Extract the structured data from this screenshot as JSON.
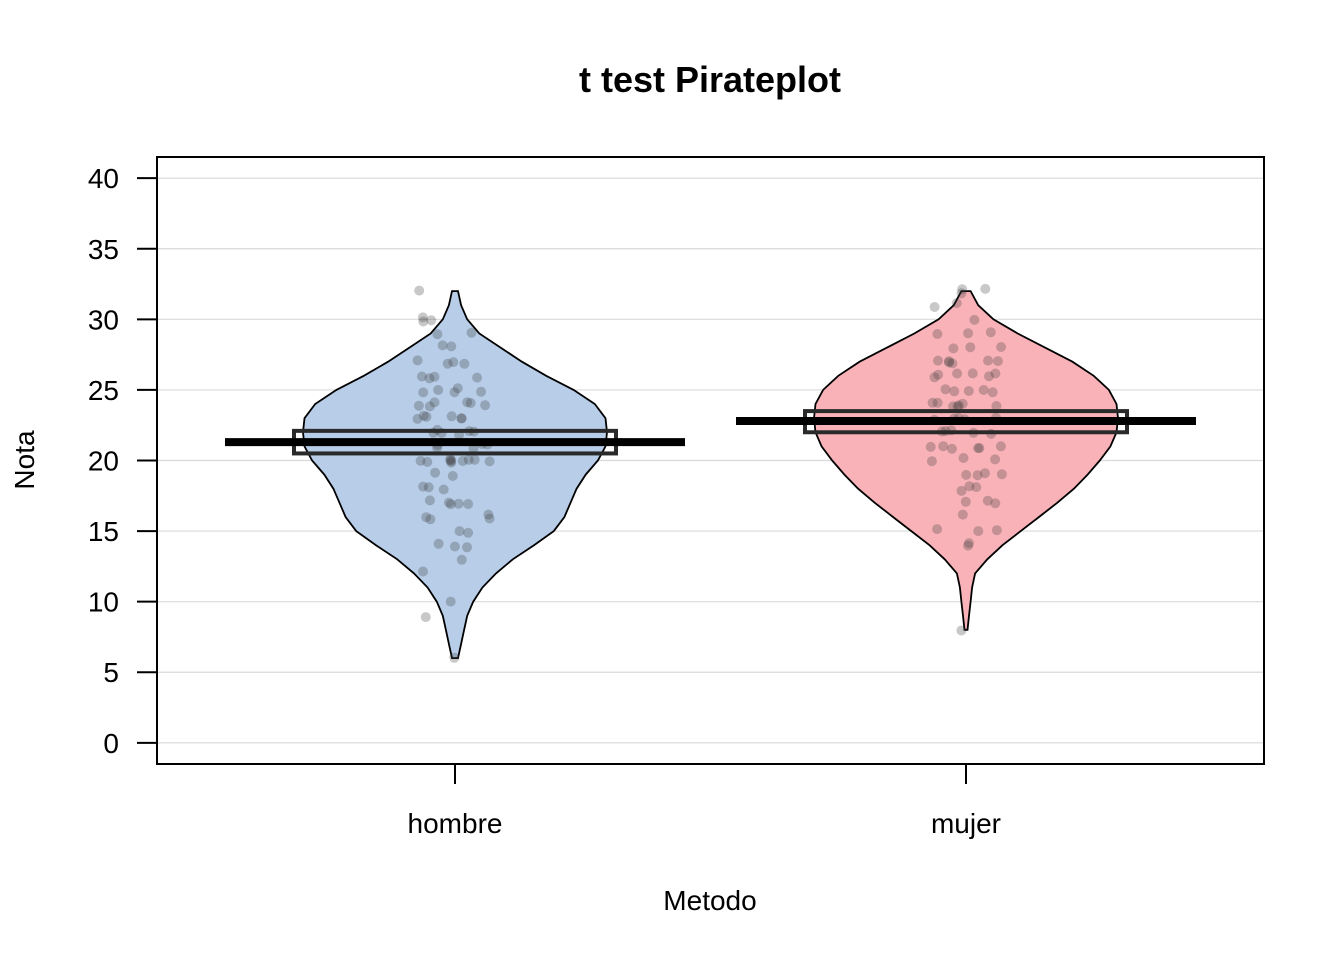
{
  "chart_data": {
    "type": "pirateplot",
    "title": "t test Pirateplot",
    "xlabel": "Metodo",
    "ylabel": "Nota",
    "ylim": [
      -1.5,
      41.5
    ],
    "yticks": [
      0,
      5,
      10,
      15,
      20,
      25,
      30,
      35,
      40
    ],
    "grid": true,
    "colors": {
      "hombre": "#b7cde8",
      "mujer": "#f8b2b8"
    },
    "groups": [
      {
        "name": "hombre",
        "mean": 21.3,
        "inference_band": [
          20.5,
          22.1
        ],
        "min": 6,
        "max": 32,
        "density": [
          [
            6,
            0.02
          ],
          [
            7,
            0.04
          ],
          [
            8,
            0.06
          ],
          [
            9,
            0.08
          ],
          [
            10,
            0.12
          ],
          [
            11,
            0.18
          ],
          [
            12,
            0.27
          ],
          [
            13,
            0.38
          ],
          [
            14,
            0.52
          ],
          [
            15,
            0.65
          ],
          [
            16,
            0.72
          ],
          [
            17,
            0.76
          ],
          [
            18,
            0.8
          ],
          [
            19,
            0.86
          ],
          [
            20,
            0.94
          ],
          [
            21,
            0.99
          ],
          [
            22,
            1.0
          ],
          [
            23,
            0.99
          ],
          [
            24,
            0.92
          ],
          [
            25,
            0.78
          ],
          [
            26,
            0.6
          ],
          [
            27,
            0.44
          ],
          [
            28,
            0.3
          ],
          [
            29,
            0.16
          ],
          [
            30,
            0.08
          ],
          [
            31,
            0.04
          ],
          [
            32,
            0.02
          ]
        ],
        "points": [
          6,
          9,
          10,
          12,
          13,
          14,
          14,
          14,
          15,
          15,
          16,
          16,
          16,
          16,
          17,
          17,
          17,
          17,
          17,
          18,
          18,
          18,
          19,
          19,
          20,
          20,
          20,
          20,
          20,
          20,
          20,
          20,
          20,
          20,
          21,
          21,
          21,
          21,
          21,
          22,
          22,
          22,
          22,
          22,
          22,
          23,
          23,
          23,
          23,
          23,
          23,
          24,
          24,
          24,
          24,
          24,
          24,
          25,
          25,
          25,
          25,
          25,
          26,
          26,
          26,
          26,
          27,
          27,
          27,
          27,
          28,
          28,
          29,
          29,
          30,
          30,
          30,
          32
        ]
      },
      {
        "name": "mujer",
        "mean": 22.8,
        "inference_band": [
          22.0,
          23.5
        ],
        "min": 8,
        "max": 32,
        "density": [
          [
            8,
            0.01
          ],
          [
            9,
            0.02
          ],
          [
            10,
            0.03
          ],
          [
            11,
            0.04
          ],
          [
            12,
            0.06
          ],
          [
            13,
            0.14
          ],
          [
            14,
            0.24
          ],
          [
            15,
            0.36
          ],
          [
            16,
            0.48
          ],
          [
            17,
            0.6
          ],
          [
            18,
            0.71
          ],
          [
            19,
            0.8
          ],
          [
            20,
            0.88
          ],
          [
            21,
            0.95
          ],
          [
            22,
            0.99
          ],
          [
            23,
            1.0
          ],
          [
            24,
            0.99
          ],
          [
            25,
            0.94
          ],
          [
            26,
            0.84
          ],
          [
            27,
            0.7
          ],
          [
            28,
            0.52
          ],
          [
            29,
            0.34
          ],
          [
            30,
            0.18
          ],
          [
            31,
            0.08
          ],
          [
            32,
            0.03
          ]
        ],
        "points": [
          8,
          14,
          14,
          15,
          15,
          15,
          16,
          17,
          17,
          17,
          18,
          18,
          18,
          19,
          19,
          19,
          19,
          20,
          20,
          20,
          21,
          21,
          21,
          21,
          21,
          21,
          22,
          22,
          22,
          22,
          22,
          23,
          23,
          23,
          23,
          23,
          24,
          24,
          24,
          24,
          24,
          24,
          24,
          25,
          25,
          25,
          25,
          25,
          26,
          26,
          26,
          26,
          26,
          26,
          27,
          27,
          27,
          27,
          27,
          27,
          28,
          28,
          28,
          29,
          29,
          29,
          30,
          31,
          31,
          32,
          32,
          32
        ]
      }
    ]
  }
}
